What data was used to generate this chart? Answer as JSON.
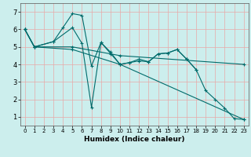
{
  "xlabel": "Humidex (Indice chaleur)",
  "bg_color": "#cceeed",
  "grid_color": "#e8a8a8",
  "line_color": "#006b6b",
  "marker": "+",
  "xlim": [
    -0.5,
    23.5
  ],
  "ylim": [
    0.5,
    7.5
  ],
  "xticks": [
    0,
    1,
    2,
    3,
    4,
    5,
    6,
    7,
    8,
    9,
    10,
    11,
    12,
    13,
    14,
    15,
    16,
    17,
    18,
    19,
    20,
    21,
    22,
    23
  ],
  "yticks": [
    1,
    2,
    3,
    4,
    5,
    6,
    7
  ],
  "lines": [
    {
      "x": [
        0,
        1,
        3,
        4,
        5,
        6,
        7,
        8,
        9,
        10,
        11,
        12,
        13,
        14,
        15,
        16,
        17,
        18,
        19,
        20,
        21,
        22,
        23
      ],
      "y": [
        6.0,
        5.0,
        5.3,
        6.1,
        6.9,
        6.8,
        3.9,
        5.25,
        4.7,
        4.0,
        4.1,
        4.3,
        4.15,
        4.6,
        4.65,
        4.85,
        4.3,
        3.7,
        2.5,
        2.0,
        1.5,
        0.9,
        0.85
      ]
    },
    {
      "x": [
        0,
        1,
        3,
        5,
        6,
        7,
        8,
        10,
        11,
        12,
        13,
        14,
        15,
        16,
        17,
        18
      ],
      "y": [
        6.0,
        5.0,
        5.3,
        6.1,
        5.2,
        1.55,
        5.25,
        4.0,
        4.1,
        4.2,
        4.15,
        4.6,
        4.65,
        4.85,
        4.3,
        3.7
      ]
    },
    {
      "x": [
        0,
        1,
        5,
        10,
        23
      ],
      "y": [
        6.0,
        5.0,
        4.85,
        4.0,
        0.85
      ]
    },
    {
      "x": [
        0,
        1,
        5,
        9,
        10,
        23
      ],
      "y": [
        6.0,
        5.0,
        5.0,
        4.6,
        4.5,
        4.0
      ]
    }
  ]
}
